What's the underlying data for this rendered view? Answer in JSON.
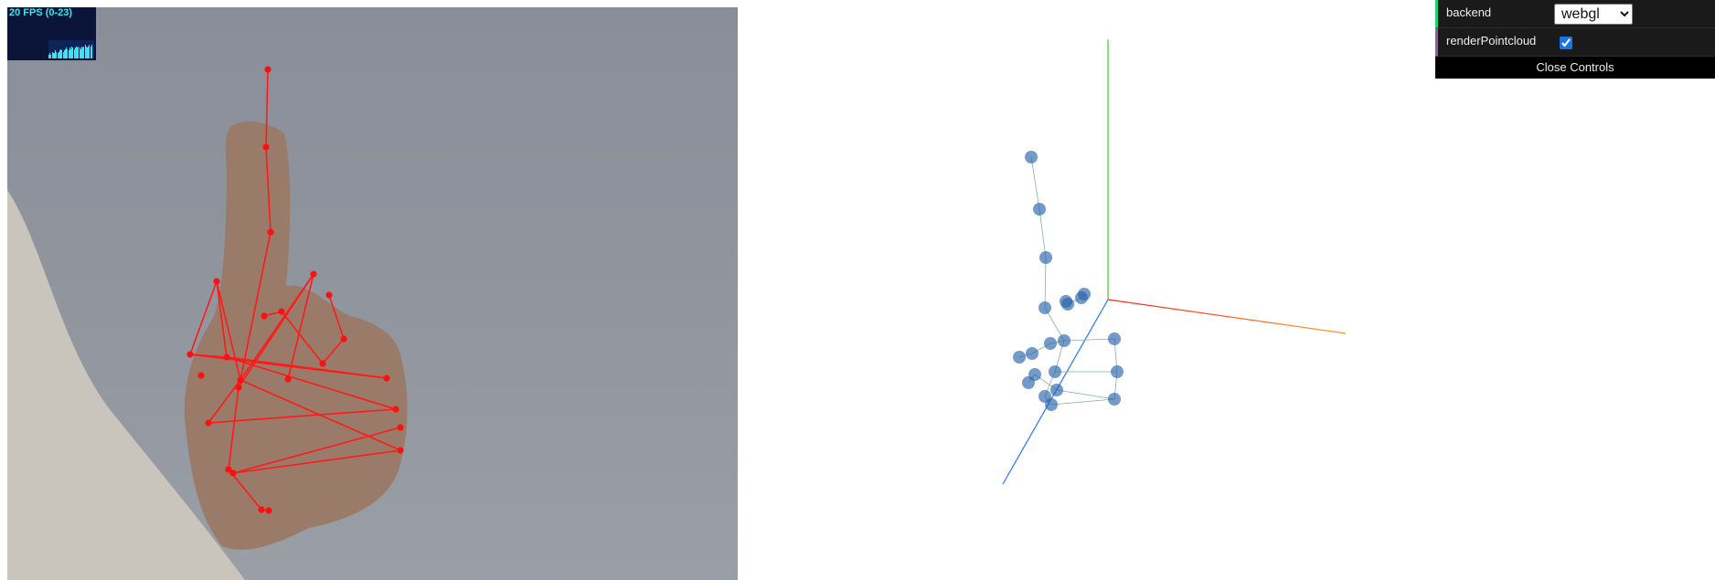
{
  "fps_meter": {
    "text": "20 FPS (0-23)",
    "history": [
      3,
      4,
      3,
      5,
      4,
      4,
      6,
      5,
      4,
      5,
      6,
      7,
      6,
      5,
      6,
      7,
      8,
      7,
      6,
      8,
      7,
      9,
      8,
      7,
      8,
      9,
      8,
      9,
      8,
      7,
      9,
      8,
      9,
      10,
      9,
      8,
      9,
      10,
      9,
      10
    ]
  },
  "video": {
    "keypoints": [
      [
        229,
        300
      ],
      [
        200,
        380
      ],
      [
        240,
        383
      ],
      [
        212,
        403
      ],
      [
        255,
        408
      ],
      [
        220,
        455
      ],
      [
        247,
        510
      ],
      [
        415,
        406
      ],
      [
        425,
        440
      ],
      [
        430,
        485
      ],
      [
        430,
        460
      ],
      [
        281,
        338
      ],
      [
        300,
        333
      ],
      [
        345,
        390
      ],
      [
        368,
        363
      ],
      [
        352,
        315
      ],
      [
        285,
        68
      ],
      [
        283,
        153
      ],
      [
        288,
        246
      ],
      [
        335,
        292
      ],
      [
        307,
        407
      ],
      [
        253,
        416
      ],
      [
        242,
        506
      ],
      [
        278,
        550
      ],
      [
        286,
        551
      ]
    ],
    "edges": [
      [
        0,
        1
      ],
      [
        0,
        2
      ],
      [
        0,
        4
      ],
      [
        1,
        2
      ],
      [
        2,
        7
      ],
      [
        1,
        7
      ],
      [
        2,
        8
      ],
      [
        4,
        5
      ],
      [
        5,
        8
      ],
      [
        4,
        9
      ],
      [
        6,
        9
      ],
      [
        6,
        10
      ],
      [
        11,
        12
      ],
      [
        12,
        13
      ],
      [
        13,
        14
      ],
      [
        14,
        15
      ],
      [
        16,
        17
      ],
      [
        17,
        18
      ],
      [
        18,
        4
      ],
      [
        4,
        19
      ],
      [
        19,
        20
      ],
      [
        19,
        21
      ],
      [
        21,
        22
      ],
      [
        22,
        23
      ],
      [
        23,
        24
      ]
    ]
  },
  "scene3d": {
    "axes": {
      "x_color": "#ff2222",
      "y_color": "#44cc22",
      "z_color": "#2277ff"
    },
    "joints": [
      [
        1128,
        172
      ],
      [
        1137,
        229
      ],
      [
        1144,
        282
      ],
      [
        1143,
        337
      ],
      [
        1168,
        333
      ],
      [
        1166,
        330
      ],
      [
        1183,
        326
      ],
      [
        1186,
        322
      ],
      [
        1164,
        373
      ],
      [
        1219,
        371
      ],
      [
        1222,
        407
      ],
      [
        1219,
        437
      ],
      [
        1149,
        376
      ],
      [
        1129,
        387
      ],
      [
        1115,
        391
      ],
      [
        1132,
        410
      ],
      [
        1154,
        407
      ],
      [
        1125,
        419
      ],
      [
        1156,
        427
      ],
      [
        1143,
        434
      ],
      [
        1150,
        443
      ]
    ],
    "bones": [
      [
        0,
        1
      ],
      [
        1,
        2
      ],
      [
        2,
        3
      ],
      [
        3,
        8
      ],
      [
        4,
        6
      ],
      [
        6,
        7
      ],
      [
        8,
        9
      ],
      [
        8,
        12
      ],
      [
        12,
        13
      ],
      [
        13,
        14
      ],
      [
        9,
        10
      ],
      [
        10,
        11
      ],
      [
        8,
        16
      ],
      [
        16,
        10
      ],
      [
        15,
        17
      ],
      [
        15,
        18
      ],
      [
        18,
        11
      ],
      [
        19,
        20
      ],
      [
        20,
        11
      ],
      [
        16,
        19
      ]
    ]
  },
  "controls": {
    "backend_label": "backend",
    "backend_value": "webgl",
    "backend_options": [
      "webgl"
    ],
    "render_pointcloud_label": "renderPointcloud",
    "render_pointcloud_checked": true,
    "close_label": "Close Controls"
  }
}
